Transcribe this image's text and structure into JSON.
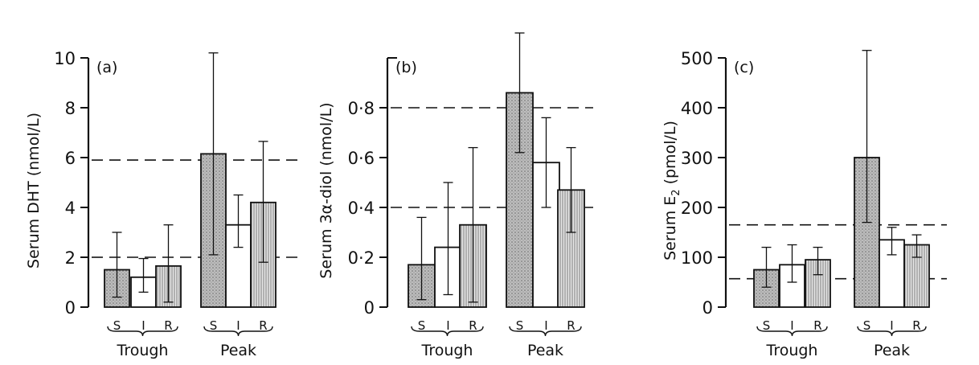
{
  "chart_data": [
    {
      "type": "bar",
      "panel_label": "(a)",
      "ylabel": "Serum DHT (nmol/L)",
      "ylim": [
        0,
        10
      ],
      "yticks": [
        "0",
        "2",
        "4",
        "6",
        "8",
        "10"
      ],
      "ytick_values": [
        0,
        2,
        4,
        6,
        8,
        10
      ],
      "groups": [
        "Trough",
        "Peak"
      ],
      "categories": [
        "S",
        "I",
        "R"
      ],
      "series": [
        {
          "group": "Trough",
          "values": [
            1.5,
            1.2,
            1.65
          ],
          "err_high": [
            3.0,
            1.95,
            3.3
          ],
          "err_low": [
            0.4,
            0.6,
            0.2
          ]
        },
        {
          "group": "Peak",
          "values": [
            6.15,
            3.3,
            4.2
          ],
          "err_high": [
            10.2,
            4.5,
            6.65
          ],
          "err_low": [
            2.1,
            2.4,
            1.8
          ]
        }
      ],
      "reference_lines": [
        2.0,
        5.9
      ]
    },
    {
      "type": "bar",
      "panel_label": "(b)",
      "ylabel": "Serum 3α-diol (nmol/L)",
      "ylim": [
        0,
        1.0
      ],
      "yticks": [
        "0",
        "0·2",
        "0·4",
        "0·6",
        "0·8"
      ],
      "ytick_values": [
        0,
        0.2,
        0.4,
        0.6,
        0.8
      ],
      "groups": [
        "Trough",
        "Peak"
      ],
      "categories": [
        "S",
        "I",
        "R"
      ],
      "series": [
        {
          "group": "Trough",
          "values": [
            0.17,
            0.24,
            0.33
          ],
          "err_high": [
            0.36,
            0.5,
            0.64
          ],
          "err_low": [
            0.03,
            0.05,
            0.02
          ]
        },
        {
          "group": "Peak",
          "values": [
            0.86,
            0.58,
            0.47
          ],
          "err_high": [
            1.1,
            0.76,
            0.64
          ],
          "err_low": [
            0.62,
            0.4,
            0.3
          ]
        }
      ],
      "reference_lines": [
        0.4,
        0.8
      ]
    },
    {
      "type": "bar",
      "panel_label": "(c)",
      "ylabel": "Serum E",
      "ylabel_subscript": "2",
      "ylabel_unit": "(pmol/L)",
      "ylim": [
        0,
        500
      ],
      "yticks": [
        "0",
        "100",
        "200",
        "300",
        "400",
        "500"
      ],
      "ytick_values": [
        0,
        100,
        200,
        300,
        400,
        500
      ],
      "groups": [
        "Trough",
        "Peak"
      ],
      "categories": [
        "S",
        "I",
        "R"
      ],
      "series": [
        {
          "group": "Trough",
          "values": [
            75,
            85,
            95
          ],
          "err_high": [
            120,
            125,
            120
          ],
          "err_low": [
            40,
            50,
            65
          ]
        },
        {
          "group": "Peak",
          "values": [
            300,
            135,
            125
          ],
          "err_high": [
            515,
            160,
            145
          ],
          "err_low": [
            170,
            105,
            100
          ]
        }
      ],
      "reference_lines": [
        57,
        165
      ]
    }
  ],
  "colors": {
    "S": "#b8b8b8",
    "I": "#ffffff",
    "R": "#d4d4d4",
    "ink": "#111111"
  }
}
